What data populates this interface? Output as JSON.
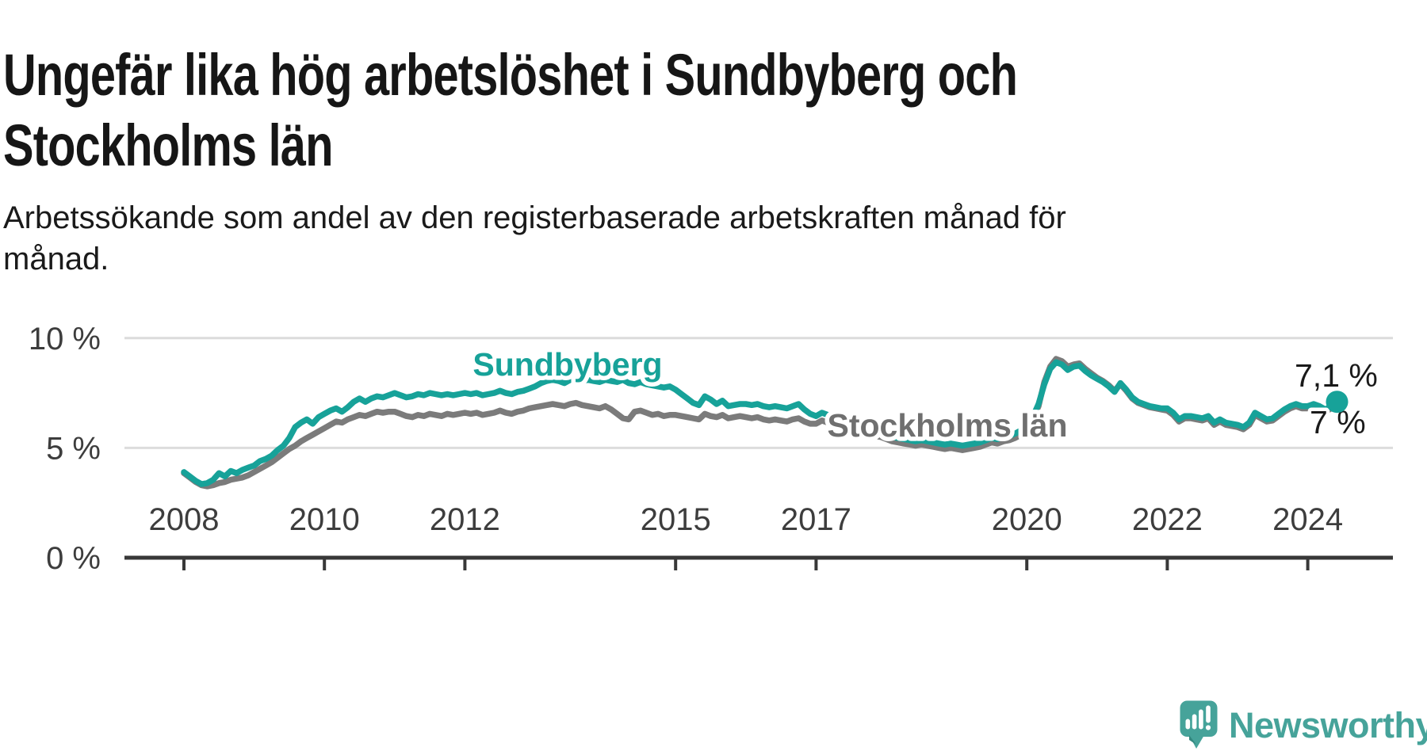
{
  "header": {
    "title": "Ungefär lika hög arbetslöshet i Sundbyberg och\nStockholms län",
    "subtitle": "Arbetssökande som andel av den registerbaserade arbetskraften månad för\nmånad."
  },
  "colors": {
    "accent_teal": "#17a299",
    "line_gray": "#7b7b7b",
    "label_gray": "#6f6f6f",
    "axis_text": "#3d3d3d",
    "axis": "#383838",
    "grid": "#dcdcdc",
    "value_text": "#1a1a1a",
    "logo_teal": "#46a39a",
    "halo": "#ffffff"
  },
  "chart_data": {
    "type": "line",
    "unit": "%",
    "x_start_year": 2008,
    "x_step_months": 1,
    "x_ticks": [
      2008,
      2010,
      2012,
      2015,
      2017,
      2020,
      2022,
      2024
    ],
    "y_ticks": [
      {
        "value": 10,
        "label": "10 %"
      },
      {
        "value": 5,
        "label": "5 %"
      },
      {
        "value": 0,
        "label": "0 %"
      }
    ],
    "ylim": [
      0,
      10.8
    ],
    "grid": "horizontal",
    "legend_position": "inline-labels",
    "series": [
      {
        "name": "Sundbyberg",
        "color": "#17a299",
        "label_color": "#17a299",
        "end_label": "7,1 %",
        "end_value": 7.1,
        "marker_end": true,
        "values": [
          3.9,
          3.7,
          3.5,
          3.35,
          3.4,
          3.55,
          3.85,
          3.7,
          3.95,
          3.85,
          4.0,
          4.1,
          4.2,
          4.4,
          4.5,
          4.65,
          4.9,
          5.1,
          5.45,
          5.95,
          6.15,
          6.3,
          6.1,
          6.4,
          6.55,
          6.7,
          6.8,
          6.65,
          6.85,
          7.1,
          7.25,
          7.1,
          7.25,
          7.35,
          7.3,
          7.4,
          7.5,
          7.4,
          7.3,
          7.35,
          7.45,
          7.4,
          7.5,
          7.45,
          7.4,
          7.45,
          7.4,
          7.45,
          7.5,
          7.45,
          7.5,
          7.4,
          7.45,
          7.5,
          7.6,
          7.5,
          7.45,
          7.55,
          7.6,
          7.7,
          7.8,
          7.95,
          8.05,
          8.1,
          8.05,
          7.95,
          8.1,
          8.15,
          8.05,
          8.1,
          8.05,
          8.0,
          8.1,
          8.05,
          8.0,
          8.1,
          7.95,
          7.9,
          8.0,
          7.9,
          7.85,
          7.8,
          7.75,
          7.8,
          7.65,
          7.45,
          7.25,
          7.05,
          6.95,
          7.35,
          7.2,
          7.0,
          7.15,
          6.9,
          6.95,
          7.0,
          7.0,
          6.95,
          7.0,
          6.9,
          6.85,
          6.9,
          6.85,
          6.8,
          6.9,
          7.0,
          6.75,
          6.55,
          6.45,
          6.6,
          6.5,
          6.4,
          6.3,
          6.2,
          6.1,
          6.0,
          5.9,
          5.8,
          5.75,
          5.7,
          5.6,
          5.5,
          5.45,
          5.4,
          5.35,
          5.3,
          5.35,
          5.3,
          5.25,
          5.2,
          5.15,
          5.2,
          5.15,
          5.1,
          5.15,
          5.2,
          5.25,
          5.35,
          5.45,
          5.4,
          5.5,
          5.55,
          5.65,
          5.8,
          5.9,
          6.4,
          7.0,
          7.9,
          8.6,
          8.9,
          8.8,
          8.55,
          8.7,
          8.75,
          8.5,
          8.3,
          8.15,
          8.0,
          7.8,
          7.55,
          7.95,
          7.65,
          7.3,
          7.1,
          7.0,
          6.9,
          6.85,
          6.8,
          6.8,
          6.6,
          6.3,
          6.45,
          6.45,
          6.4,
          6.35,
          6.45,
          6.15,
          6.3,
          6.15,
          6.1,
          6.05,
          5.95,
          6.15,
          6.6,
          6.45,
          6.3,
          6.35,
          6.55,
          6.75,
          6.9,
          7.0,
          6.9,
          6.9,
          7.0,
          6.9,
          6.75,
          6.9,
          7.1
        ]
      },
      {
        "name": "Stockholms län",
        "color": "#7b7b7b",
        "label_color": "#6f6f6f",
        "end_label": "7 %",
        "end_value": 7.0,
        "marker_end": false,
        "values": [
          3.85,
          3.65,
          3.45,
          3.3,
          3.25,
          3.3,
          3.4,
          3.45,
          3.55,
          3.6,
          3.65,
          3.75,
          3.9,
          4.05,
          4.2,
          4.35,
          4.55,
          4.75,
          4.95,
          5.1,
          5.3,
          5.45,
          5.6,
          5.75,
          5.9,
          6.05,
          6.2,
          6.15,
          6.3,
          6.4,
          6.5,
          6.45,
          6.55,
          6.65,
          6.6,
          6.65,
          6.65,
          6.55,
          6.45,
          6.4,
          6.5,
          6.45,
          6.55,
          6.5,
          6.45,
          6.55,
          6.5,
          6.55,
          6.6,
          6.55,
          6.6,
          6.5,
          6.55,
          6.6,
          6.7,
          6.6,
          6.55,
          6.65,
          6.7,
          6.8,
          6.85,
          6.9,
          6.95,
          7.0,
          6.95,
          6.9,
          7.0,
          7.05,
          6.95,
          6.9,
          6.85,
          6.8,
          6.9,
          6.75,
          6.55,
          6.35,
          6.3,
          6.65,
          6.7,
          6.6,
          6.5,
          6.55,
          6.45,
          6.5,
          6.5,
          6.45,
          6.4,
          6.35,
          6.3,
          6.55,
          6.45,
          6.4,
          6.5,
          6.35,
          6.4,
          6.45,
          6.4,
          6.35,
          6.4,
          6.3,
          6.25,
          6.3,
          6.25,
          6.2,
          6.3,
          6.35,
          6.2,
          6.1,
          6.1,
          6.25,
          6.15,
          6.05,
          6.0,
          5.95,
          5.85,
          5.8,
          5.7,
          5.6,
          5.55,
          5.5,
          5.4,
          5.3,
          5.25,
          5.2,
          5.15,
          5.1,
          5.15,
          5.1,
          5.05,
          5.0,
          4.95,
          5.0,
          4.95,
          4.9,
          4.95,
          5.0,
          5.05,
          5.15,
          5.25,
          5.2,
          5.3,
          5.35,
          5.45,
          5.6,
          5.8,
          6.3,
          6.9,
          8.0,
          8.7,
          9.05,
          8.95,
          8.7,
          8.8,
          8.85,
          8.6,
          8.4,
          8.2,
          8.05,
          7.85,
          7.6,
          7.9,
          7.6,
          7.25,
          7.05,
          6.95,
          6.85,
          6.8,
          6.75,
          6.7,
          6.5,
          6.2,
          6.35,
          6.35,
          6.3,
          6.25,
          6.35,
          6.05,
          6.2,
          6.05,
          6.0,
          5.95,
          5.85,
          6.05,
          6.5,
          6.35,
          6.2,
          6.25,
          6.45,
          6.65,
          6.8,
          6.9,
          6.8,
          6.8,
          6.9,
          6.8,
          6.65,
          6.8,
          7.0
        ]
      }
    ]
  },
  "logo": {
    "name": "Newsworthy",
    "icon": "newsworthy-speech-bubble-bar-chart-icon",
    "color": "#46a39a"
  }
}
